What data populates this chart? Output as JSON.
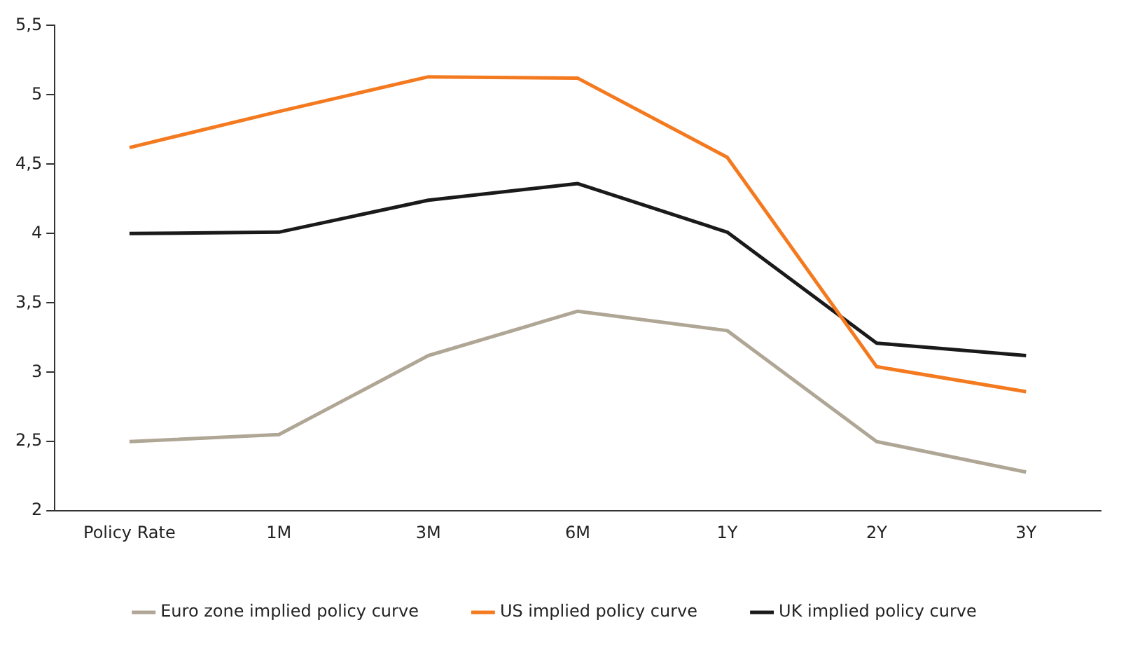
{
  "chart_data": {
    "type": "line",
    "categories": [
      "Policy Rate",
      "1M",
      "3M",
      "6M",
      "1Y",
      "2Y",
      "3Y"
    ],
    "series": [
      {
        "name": "Euro zone implied policy curve",
        "color": "#b0a695",
        "values": [
          2.5,
          2.55,
          3.12,
          3.44,
          3.3,
          2.5,
          2.28
        ]
      },
      {
        "name": "US implied policy curve",
        "color": "#f47a20",
        "values": [
          4.62,
          4.88,
          5.13,
          5.12,
          4.55,
          3.04,
          2.86
        ]
      },
      {
        "name": "UK implied policy curve",
        "color": "#1a1a1a",
        "values": [
          4.0,
          4.01,
          4.24,
          4.36,
          4.01,
          3.21,
          3.12
        ]
      }
    ],
    "ylim": [
      2,
      5.5
    ],
    "yticks": [
      2,
      {
        "value": 2.5,
        "label": "2,5"
      },
      3,
      {
        "value": 3.5,
        "label": "3,5"
      },
      4,
      {
        "value": 4.5,
        "label": "4,5"
      },
      5,
      {
        "value": 5.5,
        "label": "5,5"
      }
    ],
    "grid": false,
    "legend": "bottom",
    "marker": "none",
    "line_style": "solid"
  }
}
